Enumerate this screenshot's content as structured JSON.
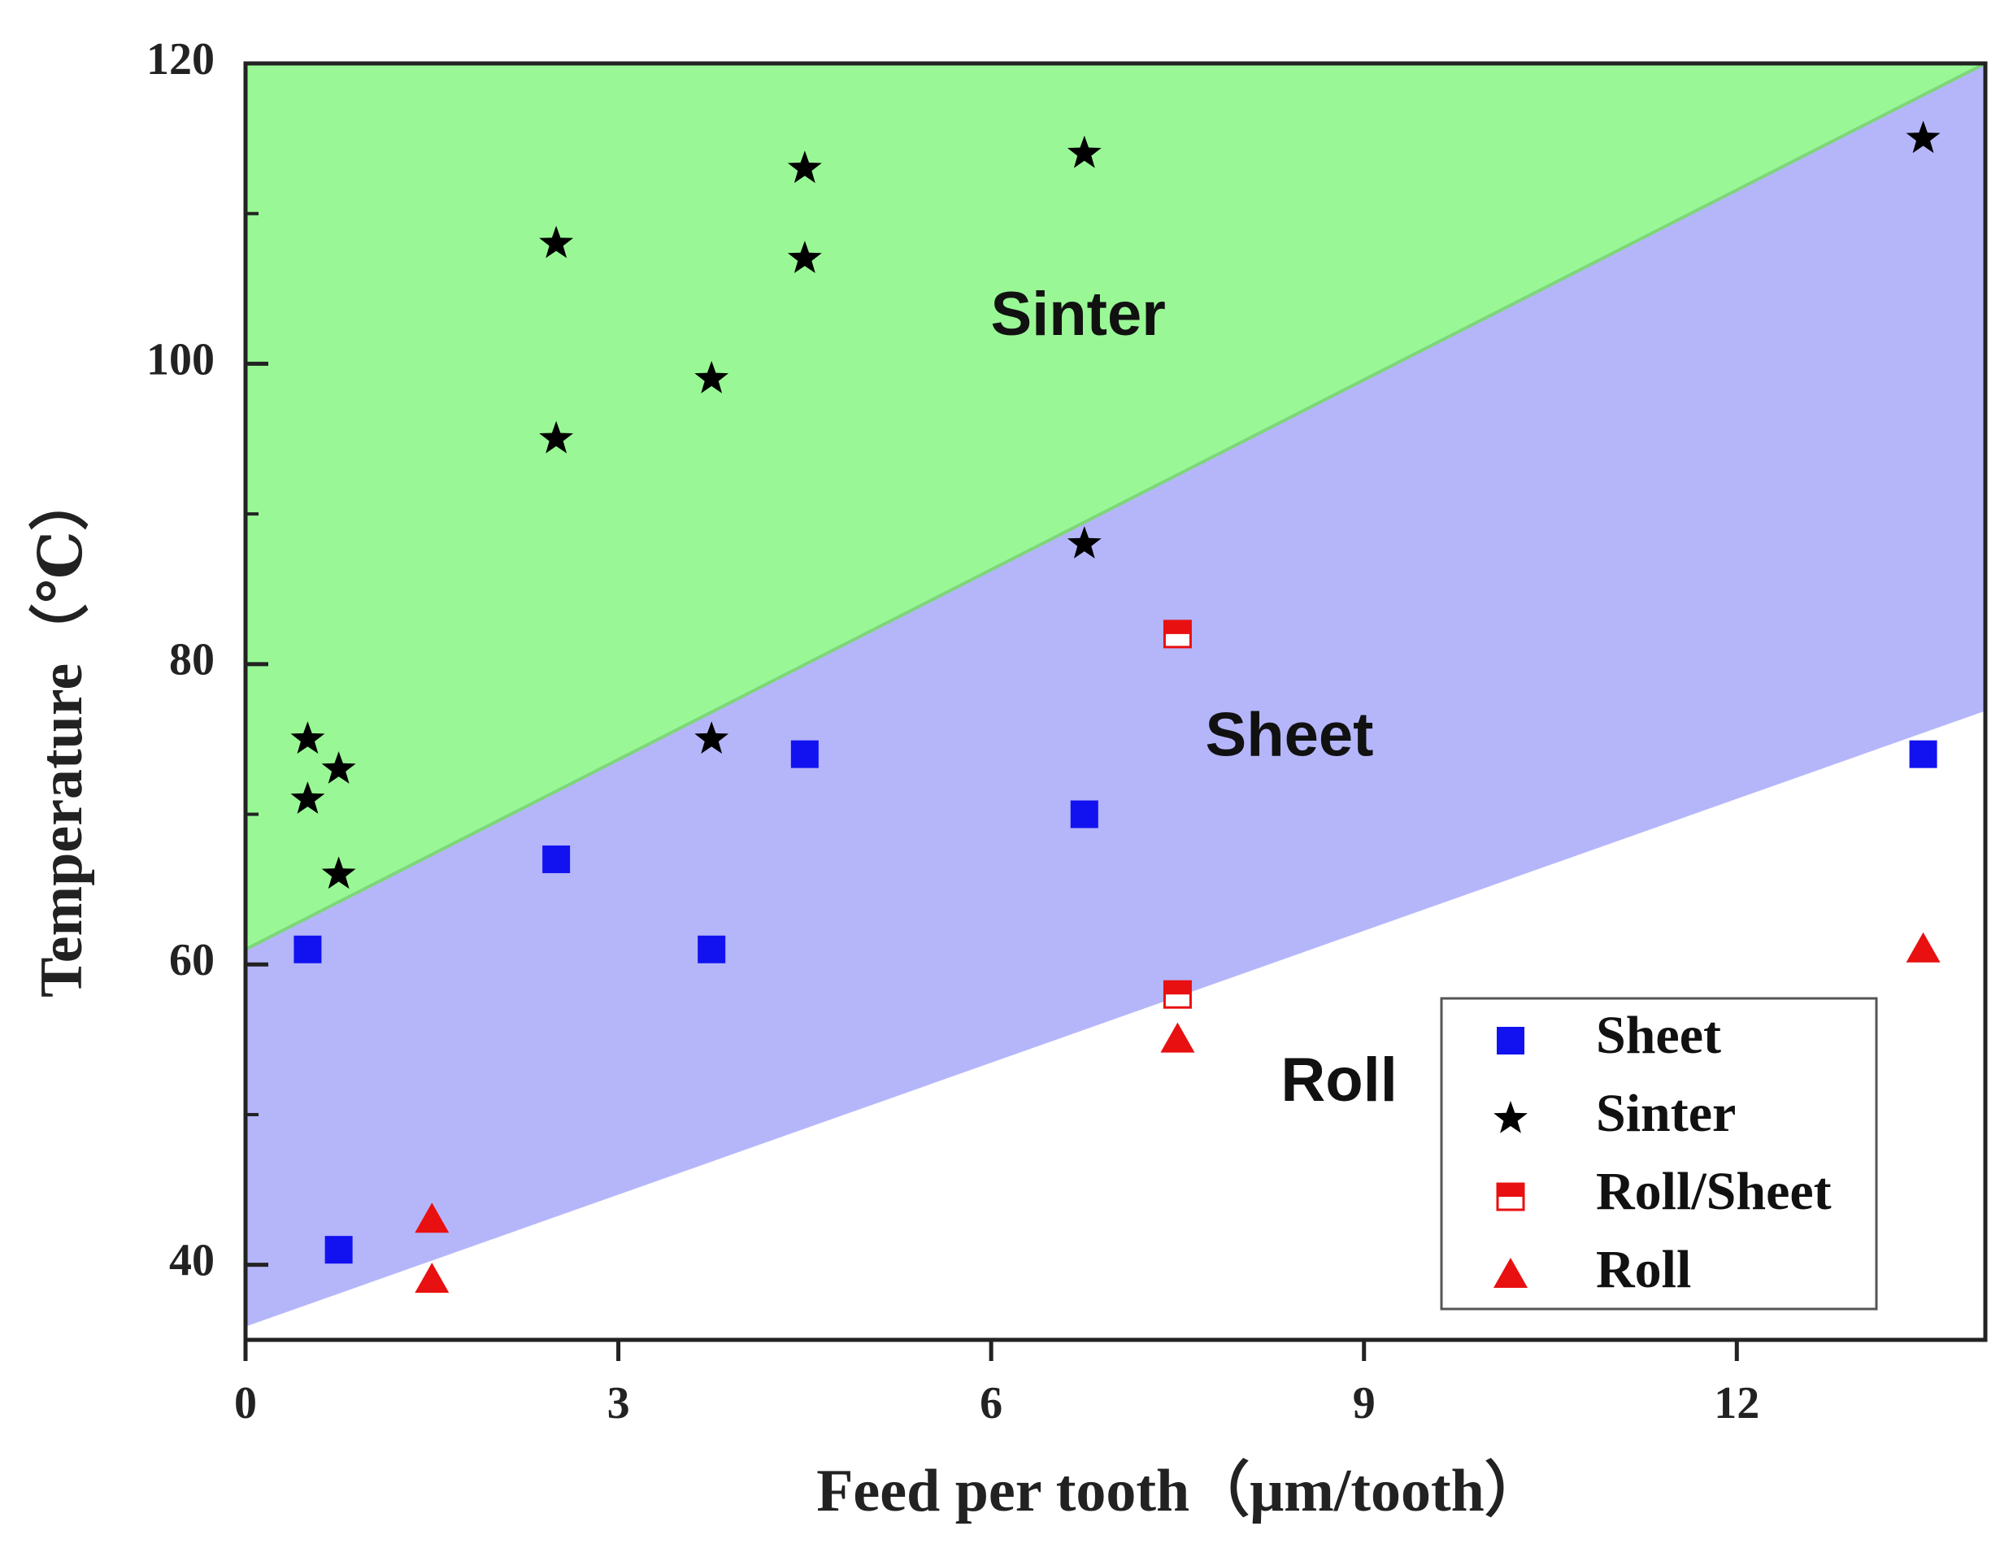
{
  "chart_data": {
    "type": "scatter",
    "title": "",
    "xlabel": "Feed per tooth（μm/tooth）",
    "ylabel": "Temperature（℃）",
    "xlim": [
      0,
      14
    ],
    "ylim": [
      35,
      120
    ],
    "xticks": [
      0,
      3,
      6,
      9,
      12
    ],
    "yticks": [
      40,
      60,
      80,
      100,
      120
    ],
    "minor_yticks": [
      50,
      70,
      90,
      110
    ],
    "grid": false,
    "legend_position": "bottom-right",
    "regions": [
      {
        "name": "Sinter",
        "label": "Sinter",
        "color": "#99f895",
        "polygon": [
          [
            0,
            61
          ],
          [
            0,
            120
          ],
          [
            14,
            120
          ]
        ],
        "label_at": [
          6.7,
          103
        ]
      },
      {
        "name": "Sheet",
        "label": "Sheet",
        "color": "#b5b6fa",
        "polygon": [
          [
            0,
            36
          ],
          [
            0,
            61
          ],
          [
            14,
            120
          ],
          [
            14,
            77
          ]
        ],
        "label_at": [
          8.4,
          75
        ]
      },
      {
        "name": "Roll",
        "label": "Roll",
        "color": "#ffffff",
        "polygon": [
          [
            0,
            35
          ],
          [
            0,
            36
          ],
          [
            14,
            77
          ],
          [
            14,
            35
          ]
        ],
        "label_at": [
          8.8,
          52
        ]
      }
    ],
    "boundaries": [
      {
        "from": [
          0,
          61
        ],
        "to": [
          14,
          120
        ],
        "color": "#7ed67a"
      },
      {
        "from": [
          0,
          36
        ],
        "to": [
          14,
          77
        ],
        "color": "#b5b6fa"
      }
    ],
    "series": [
      {
        "name": "Sheet",
        "marker": "square",
        "color": "#1212f0",
        "x": [
          0.5,
          0.75,
          2.5,
          3.75,
          4.5,
          6.75,
          13.5
        ],
        "y": [
          61,
          41,
          67,
          61,
          74,
          70,
          74
        ]
      },
      {
        "name": "Sinter",
        "marker": "star",
        "color": "#000000",
        "x": [
          0.5,
          0.5,
          0.75,
          0.75,
          2.5,
          2.5,
          3.75,
          3.75,
          4.5,
          4.5,
          6.75,
          6.75,
          13.5
        ],
        "y": [
          75,
          71,
          73,
          66,
          108,
          95,
          99,
          75,
          113,
          107,
          114,
          88,
          115
        ]
      },
      {
        "name": "Roll/Sheet",
        "marker": "half-square",
        "color": "#e81010",
        "x": [
          7.5,
          7.5
        ],
        "y": [
          82,
          58
        ]
      },
      {
        "name": "Roll",
        "marker": "triangle",
        "color": "#e81010",
        "x": [
          1.5,
          1.5,
          7.5,
          13.5
        ],
        "y": [
          43,
          39,
          55,
          61
        ]
      }
    ]
  }
}
